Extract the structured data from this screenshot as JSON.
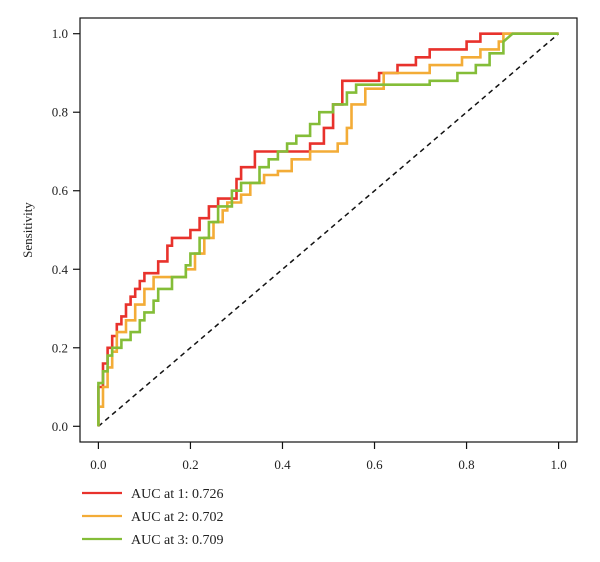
{
  "chart_data": {
    "type": "line",
    "title": "",
    "xlabel": "",
    "ylabel": "Sensitivity",
    "xlim": [
      -0.04,
      1.04
    ],
    "ylim": [
      -0.04,
      1.04
    ],
    "x_ticks": [
      "0.0",
      "0.2",
      "0.4",
      "0.6",
      "0.8",
      "1.0"
    ],
    "y_ticks": [
      "0.0",
      "0.2",
      "0.4",
      "0.6",
      "0.8",
      "1.0"
    ],
    "grid": false,
    "legend_position": "bottom-left, below plot",
    "reference_line": {
      "x": [
        0,
        1
      ],
      "y": [
        0,
        1
      ],
      "style": "dashed",
      "color": "#111111"
    },
    "series": [
      {
        "name": "AUC at 1: 0.726",
        "color": "#e8322c",
        "x": [
          0,
          0,
          0.01,
          0.01,
          0.02,
          0.02,
          0.03,
          0.03,
          0.04,
          0.04,
          0.05,
          0.05,
          0.06,
          0.06,
          0.07,
          0.07,
          0.08,
          0.08,
          0.09,
          0.09,
          0.1,
          0.1,
          0.13,
          0.13,
          0.15,
          0.15,
          0.16,
          0.16,
          0.2,
          0.2,
          0.22,
          0.22,
          0.24,
          0.24,
          0.26,
          0.26,
          0.3,
          0.3,
          0.31,
          0.31,
          0.34,
          0.34,
          0.38,
          0.38,
          0.41,
          0.41,
          0.46,
          0.46,
          0.49,
          0.49,
          0.51,
          0.51,
          0.53,
          0.53,
          0.55,
          0.55,
          0.61,
          0.61,
          0.65,
          0.65,
          0.69,
          0.69,
          0.72,
          0.72,
          0.8,
          0.8,
          0.83,
          0.83,
          0.86,
          0.86,
          0.88,
          1.0
        ],
        "y": [
          0,
          0.1,
          0.1,
          0.16,
          0.16,
          0.2,
          0.2,
          0.23,
          0.23,
          0.26,
          0.26,
          0.28,
          0.28,
          0.31,
          0.31,
          0.33,
          0.33,
          0.35,
          0.35,
          0.37,
          0.37,
          0.39,
          0.39,
          0.42,
          0.42,
          0.46,
          0.46,
          0.48,
          0.48,
          0.5,
          0.5,
          0.53,
          0.53,
          0.56,
          0.56,
          0.58,
          0.58,
          0.63,
          0.63,
          0.66,
          0.66,
          0.7,
          0.7,
          0.7,
          0.7,
          0.7,
          0.7,
          0.72,
          0.72,
          0.76,
          0.76,
          0.82,
          0.82,
          0.88,
          0.88,
          0.88,
          0.88,
          0.9,
          0.9,
          0.92,
          0.92,
          0.94,
          0.94,
          0.96,
          0.96,
          0.98,
          0.98,
          1.0,
          1.0,
          1.0,
          1.0,
          1.0
        ]
      },
      {
        "name": "AUC at 2: 0.702",
        "color": "#f3ac37",
        "x": [
          0,
          0,
          0.01,
          0.01,
          0.02,
          0.02,
          0.03,
          0.03,
          0.04,
          0.04,
          0.06,
          0.06,
          0.08,
          0.08,
          0.1,
          0.1,
          0.12,
          0.12,
          0.16,
          0.16,
          0.19,
          0.19,
          0.21,
          0.21,
          0.23,
          0.23,
          0.25,
          0.25,
          0.27,
          0.27,
          0.28,
          0.28,
          0.31,
          0.31,
          0.33,
          0.33,
          0.36,
          0.36,
          0.39,
          0.39,
          0.42,
          0.42,
          0.46,
          0.46,
          0.5,
          0.5,
          0.52,
          0.52,
          0.54,
          0.54,
          0.55,
          0.55,
          0.58,
          0.58,
          0.62,
          0.62,
          0.72,
          0.72,
          0.79,
          0.79,
          0.83,
          0.83,
          0.87,
          0.87,
          0.88,
          0.88,
          1.0
        ],
        "y": [
          0,
          0.05,
          0.05,
          0.1,
          0.1,
          0.15,
          0.15,
          0.19,
          0.19,
          0.24,
          0.24,
          0.27,
          0.27,
          0.31,
          0.31,
          0.35,
          0.35,
          0.38,
          0.38,
          0.38,
          0.38,
          0.4,
          0.4,
          0.44,
          0.44,
          0.48,
          0.48,
          0.52,
          0.52,
          0.55,
          0.55,
          0.57,
          0.57,
          0.59,
          0.59,
          0.62,
          0.62,
          0.64,
          0.64,
          0.65,
          0.65,
          0.68,
          0.68,
          0.7,
          0.7,
          0.7,
          0.7,
          0.72,
          0.72,
          0.76,
          0.76,
          0.82,
          0.82,
          0.86,
          0.86,
          0.9,
          0.9,
          0.92,
          0.92,
          0.94,
          0.94,
          0.96,
          0.96,
          0.98,
          0.98,
          1.0,
          1.0
        ]
      },
      {
        "name": "AUC at 3: 0.709",
        "color": "#84bd38",
        "x": [
          0,
          0,
          0.01,
          0.01,
          0.02,
          0.02,
          0.03,
          0.03,
          0.05,
          0.05,
          0.07,
          0.07,
          0.09,
          0.09,
          0.1,
          0.1,
          0.12,
          0.12,
          0.13,
          0.13,
          0.16,
          0.16,
          0.19,
          0.19,
          0.2,
          0.2,
          0.22,
          0.22,
          0.24,
          0.24,
          0.26,
          0.26,
          0.29,
          0.29,
          0.31,
          0.31,
          0.35,
          0.35,
          0.37,
          0.37,
          0.39,
          0.39,
          0.41,
          0.41,
          0.43,
          0.43,
          0.46,
          0.46,
          0.48,
          0.48,
          0.51,
          0.51,
          0.54,
          0.54,
          0.56,
          0.56,
          0.63,
          0.63,
          0.72,
          0.72,
          0.78,
          0.78,
          0.82,
          0.82,
          0.85,
          0.85,
          0.88,
          0.88,
          0.9,
          1.0
        ],
        "y": [
          0,
          0.11,
          0.11,
          0.14,
          0.14,
          0.18,
          0.18,
          0.2,
          0.2,
          0.22,
          0.22,
          0.24,
          0.24,
          0.27,
          0.27,
          0.29,
          0.29,
          0.32,
          0.32,
          0.35,
          0.35,
          0.38,
          0.38,
          0.41,
          0.41,
          0.44,
          0.44,
          0.48,
          0.48,
          0.52,
          0.52,
          0.56,
          0.56,
          0.6,
          0.6,
          0.62,
          0.62,
          0.66,
          0.66,
          0.68,
          0.68,
          0.7,
          0.7,
          0.72,
          0.72,
          0.74,
          0.74,
          0.77,
          0.77,
          0.8,
          0.8,
          0.82,
          0.82,
          0.85,
          0.85,
          0.87,
          0.87,
          0.87,
          0.87,
          0.88,
          0.88,
          0.9,
          0.9,
          0.92,
          0.92,
          0.95,
          0.95,
          0.98,
          1.0,
          1.0
        ]
      }
    ]
  }
}
